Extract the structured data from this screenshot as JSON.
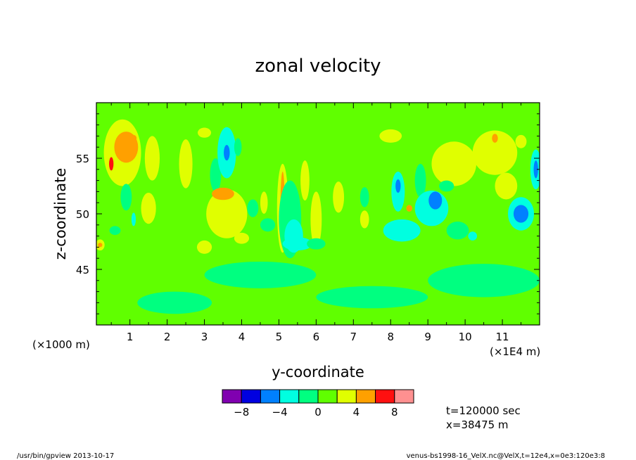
{
  "chart_data": {
    "type": "heatmap",
    "title": "zonal velocity",
    "xlabel": "y-coordinate",
    "ylabel": "z-coordinate",
    "x_unit": "(×1000 m)",
    "x_unit_right": "(×1E4 m)",
    "xlim": [
      0.1,
      12.0
    ],
    "ylim": [
      40.0,
      60.0
    ],
    "xticks": [
      1,
      2,
      3,
      4,
      5,
      6,
      7,
      8,
      9,
      10,
      11
    ],
    "yticks": [
      45,
      50,
      55
    ],
    "colorbar": {
      "levels": [
        -10,
        -8,
        -6,
        -4,
        -2,
        0,
        2,
        4,
        6,
        8,
        10
      ],
      "tick_values": [
        -8,
        -4,
        0,
        4,
        8
      ],
      "colors": [
        "#8000b0",
        "#0000e0",
        "#0080ff",
        "#00ffe0",
        "#00ff80",
        "#60ff00",
        "#e0ff00",
        "#ffa000",
        "#ff1010",
        "#ff9090"
      ]
    },
    "background_value": 1,
    "blobs": [
      {
        "x": 0.8,
        "y": 55.5,
        "rx": 0.5,
        "ry": 3.0,
        "v": 3
      },
      {
        "x": 0.9,
        "y": 56.0,
        "rx": 0.32,
        "ry": 1.4,
        "v": 5
      },
      {
        "x": 1.1,
        "y": 56.8,
        "rx": 0.08,
        "ry": 0.3,
        "v": 5
      },
      {
        "x": 0.5,
        "y": 54.5,
        "rx": 0.06,
        "ry": 0.6,
        "v": 6
      },
      {
        "x": 1.6,
        "y": 55.0,
        "rx": 0.2,
        "ry": 2.0,
        "v": 3
      },
      {
        "x": 1.5,
        "y": 50.5,
        "rx": 0.2,
        "ry": 1.4,
        "v": 3
      },
      {
        "x": 0.2,
        "y": 47.2,
        "rx": 0.12,
        "ry": 0.5,
        "v": 3
      },
      {
        "x": 0.2,
        "y": 47.2,
        "rx": 0.06,
        "ry": 0.2,
        "v": 5
      },
      {
        "x": 0.9,
        "y": 51.5,
        "rx": 0.15,
        "ry": 1.2,
        "v": -1
      },
      {
        "x": 1.1,
        "y": 49.5,
        "rx": 0.06,
        "ry": 0.6,
        "v": -4
      },
      {
        "x": 0.6,
        "y": 48.5,
        "rx": 0.15,
        "ry": 0.4,
        "v": -1
      },
      {
        "x": 2.5,
        "y": 54.5,
        "rx": 0.18,
        "ry": 2.2,
        "v": 3
      },
      {
        "x": 3.0,
        "y": 57.3,
        "rx": 0.18,
        "ry": 0.45,
        "v": 3
      },
      {
        "x": 3.3,
        "y": 53.5,
        "rx": 0.15,
        "ry": 1.5,
        "v": -1
      },
      {
        "x": 3.6,
        "y": 50.0,
        "rx": 0.55,
        "ry": 2.2,
        "v": 3
      },
      {
        "x": 3.5,
        "y": 51.8,
        "rx": 0.3,
        "ry": 0.55,
        "v": 5
      },
      {
        "x": 3.6,
        "y": 55.5,
        "rx": 0.25,
        "ry": 2.3,
        "v": -3
      },
      {
        "x": 3.6,
        "y": 55.5,
        "rx": 0.08,
        "ry": 0.7,
        "v": -5
      },
      {
        "x": 3.9,
        "y": 56.0,
        "rx": 0.1,
        "ry": 0.8,
        "v": -1
      },
      {
        "x": 3.0,
        "y": 47.0,
        "rx": 0.2,
        "ry": 0.6,
        "v": 3
      },
      {
        "x": 4.0,
        "y": 47.8,
        "rx": 0.2,
        "ry": 0.5,
        "v": 3
      },
      {
        "x": 4.3,
        "y": 50.5,
        "rx": 0.15,
        "ry": 0.8,
        "v": -1
      },
      {
        "x": 4.6,
        "y": 51.0,
        "rx": 0.1,
        "ry": 1.0,
        "v": 3
      },
      {
        "x": 5.1,
        "y": 50.5,
        "rx": 0.15,
        "ry": 4.0,
        "v": 3
      },
      {
        "x": 5.1,
        "y": 50.5,
        "rx": 0.06,
        "ry": 3.3,
        "v": 5
      },
      {
        "x": 5.3,
        "y": 49.5,
        "rx": 0.3,
        "ry": 3.5,
        "v": -1
      },
      {
        "x": 5.4,
        "y": 48.0,
        "rx": 0.25,
        "ry": 1.5,
        "v": -3
      },
      {
        "x": 4.7,
        "y": 49.0,
        "rx": 0.2,
        "ry": 0.6,
        "v": -1
      },
      {
        "x": 6.0,
        "y": 49.5,
        "rx": 0.15,
        "ry": 2.5,
        "v": 3
      },
      {
        "x": 5.7,
        "y": 53.0,
        "rx": 0.12,
        "ry": 1.8,
        "v": 3
      },
      {
        "x": 6.6,
        "y": 51.5,
        "rx": 0.15,
        "ry": 1.4,
        "v": 3
      },
      {
        "x": 5.5,
        "y": 47.3,
        "rx": 0.4,
        "ry": 0.6,
        "v": -3
      },
      {
        "x": 6.0,
        "y": 47.3,
        "rx": 0.25,
        "ry": 0.5,
        "v": -1
      },
      {
        "x": 7.3,
        "y": 49.5,
        "rx": 0.12,
        "ry": 0.8,
        "v": 3
      },
      {
        "x": 7.3,
        "y": 51.5,
        "rx": 0.12,
        "ry": 0.9,
        "v": -1
      },
      {
        "x": 8.0,
        "y": 57.0,
        "rx": 0.3,
        "ry": 0.6,
        "v": 3
      },
      {
        "x": 8.2,
        "y": 52.0,
        "rx": 0.18,
        "ry": 1.8,
        "v": -3
      },
      {
        "x": 8.2,
        "y": 52.5,
        "rx": 0.07,
        "ry": 0.6,
        "v": -5
      },
      {
        "x": 8.5,
        "y": 50.5,
        "rx": 0.08,
        "ry": 0.3,
        "v": 4
      },
      {
        "x": 8.3,
        "y": 48.5,
        "rx": 0.5,
        "ry": 1.0,
        "v": -3
      },
      {
        "x": 8.8,
        "y": 53.0,
        "rx": 0.15,
        "ry": 1.5,
        "v": -1
      },
      {
        "x": 9.1,
        "y": 50.5,
        "rx": 0.45,
        "ry": 1.6,
        "v": -3
      },
      {
        "x": 9.2,
        "y": 51.2,
        "rx": 0.18,
        "ry": 0.8,
        "v": -5
      },
      {
        "x": 9.7,
        "y": 54.5,
        "rx": 0.6,
        "ry": 2.0,
        "v": 3
      },
      {
        "x": 9.5,
        "y": 52.5,
        "rx": 0.2,
        "ry": 0.5,
        "v": -1
      },
      {
        "x": 9.8,
        "y": 48.5,
        "rx": 0.3,
        "ry": 0.8,
        "v": -1
      },
      {
        "x": 10.2,
        "y": 48.0,
        "rx": 0.12,
        "ry": 0.4,
        "v": -3
      },
      {
        "x": 10.8,
        "y": 55.5,
        "rx": 0.6,
        "ry": 2.0,
        "v": 3
      },
      {
        "x": 10.8,
        "y": 56.8,
        "rx": 0.08,
        "ry": 0.4,
        "v": 5
      },
      {
        "x": 11.1,
        "y": 52.5,
        "rx": 0.3,
        "ry": 1.2,
        "v": 3
      },
      {
        "x": 11.5,
        "y": 50.0,
        "rx": 0.35,
        "ry": 1.5,
        "v": -3
      },
      {
        "x": 11.5,
        "y": 50.0,
        "rx": 0.2,
        "ry": 0.8,
        "v": -5
      },
      {
        "x": 11.9,
        "y": 54.0,
        "rx": 0.15,
        "ry": 1.8,
        "v": -3
      },
      {
        "x": 11.9,
        "y": 54.0,
        "rx": 0.06,
        "ry": 0.8,
        "v": -5
      },
      {
        "x": 11.5,
        "y": 56.5,
        "rx": 0.15,
        "ry": 0.6,
        "v": 3
      },
      {
        "x": 2.2,
        "y": 42.0,
        "rx": 1.0,
        "ry": 1.0,
        "v": -1
      },
      {
        "x": 7.5,
        "y": 42.5,
        "rx": 1.5,
        "ry": 1.0,
        "v": -1
      },
      {
        "x": 4.5,
        "y": 44.5,
        "rx": 1.5,
        "ry": 1.2,
        "v": -1
      },
      {
        "x": 10.5,
        "y": 44.0,
        "rx": 1.5,
        "ry": 1.5,
        "v": -1
      }
    ]
  },
  "annotations": {
    "time": "t=120000 sec",
    "position": "x=38475 m",
    "footer_left": "/usr/bin/gpview  2013-10-17",
    "footer_right": "venus-bs1998-16_VelX.nc@VelX,t=12e4,x=0e3:120e3:8"
  }
}
